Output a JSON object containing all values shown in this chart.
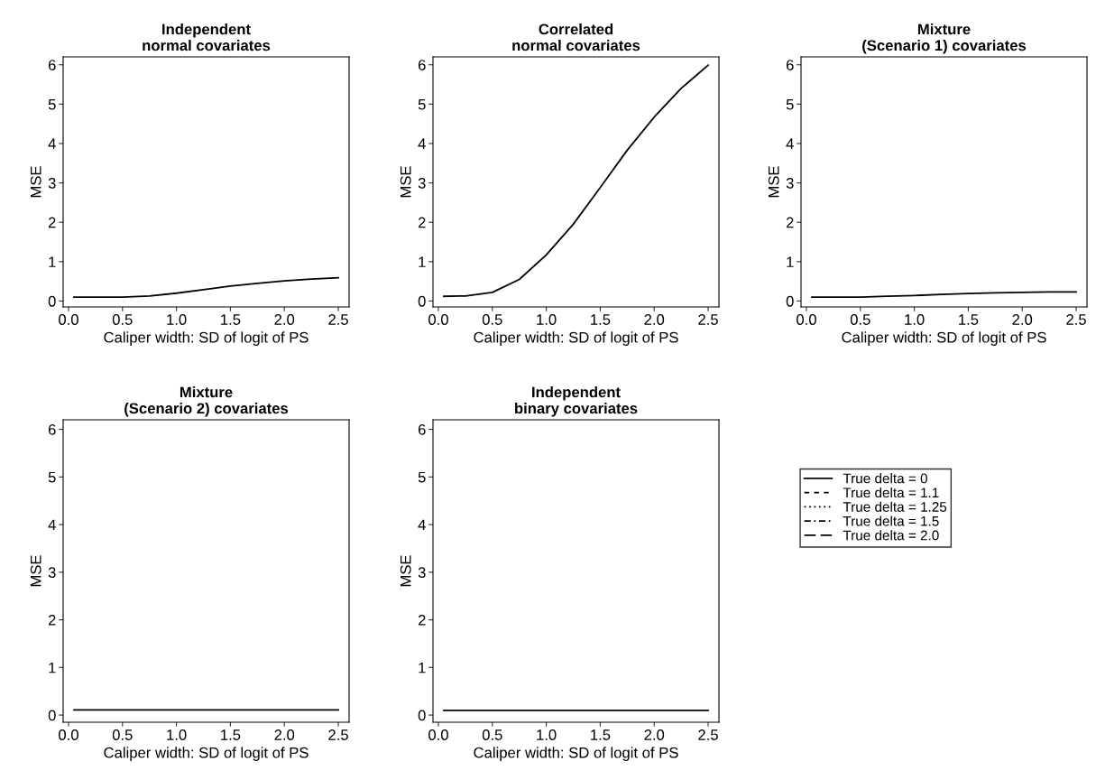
{
  "chart_data": [
    {
      "type": "line",
      "title": "Independent\nnormal covariates",
      "xlabel": "Caliper width: SD of logit of PS",
      "ylabel": "MSE",
      "xlim": [
        -0.05,
        2.6
      ],
      "ylim": [
        -0.15,
        6.2
      ],
      "xticks": [
        {
          "value": 0,
          "label": "0.0"
        },
        0.5,
        {
          "value": 1,
          "label": "1.0"
        },
        1.5,
        {
          "value": 2,
          "label": "2.0"
        },
        2.5
      ],
      "yticks": [
        0,
        1,
        2,
        3,
        4,
        5,
        6
      ],
      "x": [
        0.05,
        0.25,
        0.5,
        0.75,
        1.0,
        1.25,
        1.5,
        1.75,
        2.0,
        2.25,
        2.5
      ],
      "series": [
        {
          "color": "#000000",
          "line_style": "solid",
          "values": [
            0.1,
            0.1,
            0.1,
            0.13,
            0.2,
            0.29,
            0.38,
            0.45,
            0.51,
            0.56,
            0.59
          ]
        }
      ]
    },
    {
      "type": "line",
      "title": "Correlated\nnormal covariates",
      "xlabel": "Caliper width: SD of logit of PS",
      "ylabel": "MSE",
      "xlim": [
        -0.05,
        2.6
      ],
      "ylim": [
        -0.15,
        6.2
      ],
      "xticks": [
        {
          "value": 0,
          "label": "0.0"
        },
        0.5,
        {
          "value": 1,
          "label": "1.0"
        },
        1.5,
        {
          "value": 2,
          "label": "2.0"
        },
        2.5
      ],
      "yticks": [
        0,
        1,
        2,
        3,
        4,
        5,
        6
      ],
      "x": [
        0.05,
        0.25,
        0.5,
        0.75,
        1.0,
        1.25,
        1.5,
        1.75,
        2.0,
        2.25,
        2.5
      ],
      "series": [
        {
          "color": "#000000",
          "line_style": "solid",
          "values": [
            0.12,
            0.13,
            0.22,
            0.55,
            1.17,
            1.95,
            2.88,
            3.83,
            4.67,
            5.4,
            5.99
          ]
        }
      ]
    },
    {
      "type": "line",
      "title": "Mixture\n(Scenario 1) covariates",
      "xlabel": "Caliper width: SD of logit of PS",
      "ylabel": "MSE",
      "xlim": [
        -0.05,
        2.6
      ],
      "ylim": [
        -0.15,
        6.2
      ],
      "xticks": [
        {
          "value": 0,
          "label": "0.0"
        },
        0.5,
        {
          "value": 1,
          "label": "1.0"
        },
        1.5,
        {
          "value": 2,
          "label": "2.0"
        },
        2.5
      ],
      "yticks": [
        0,
        1,
        2,
        3,
        4,
        5,
        6
      ],
      "x": [
        0.05,
        0.25,
        0.5,
        0.75,
        1.0,
        1.25,
        1.5,
        1.75,
        2.0,
        2.25,
        2.5
      ],
      "series": [
        {
          "color": "#000000",
          "line_style": "solid",
          "values": [
            0.1,
            0.1,
            0.1,
            0.12,
            0.14,
            0.17,
            0.19,
            0.21,
            0.22,
            0.23,
            0.23
          ]
        }
      ]
    },
    {
      "type": "line",
      "title": "Mixture\n(Scenario 2) covariates",
      "xlabel": "Caliper width: SD of logit of PS",
      "ylabel": "MSE",
      "xlim": [
        -0.05,
        2.6
      ],
      "ylim": [
        -0.15,
        6.2
      ],
      "xticks": [
        {
          "value": 0,
          "label": "0.0"
        },
        0.5,
        {
          "value": 1,
          "label": "1.0"
        },
        1.5,
        {
          "value": 2,
          "label": "2.0"
        },
        2.5
      ],
      "yticks": [
        0,
        1,
        2,
        3,
        4,
        5,
        6
      ],
      "x": [
        0.05,
        0.25,
        0.5,
        0.75,
        1.0,
        1.25,
        1.5,
        1.75,
        2.0,
        2.25,
        2.5
      ],
      "series": [
        {
          "color": "#000000",
          "line_style": "solid",
          "values": [
            0.11,
            0.11,
            0.11,
            0.11,
            0.11,
            0.11,
            0.11,
            0.11,
            0.11,
            0.11,
            0.11
          ]
        }
      ]
    },
    {
      "type": "line",
      "title": "Independent\nbinary covariates",
      "xlabel": "Caliper width: SD of logit of PS",
      "ylabel": "MSE",
      "xlim": [
        -0.05,
        2.6
      ],
      "ylim": [
        -0.15,
        6.2
      ],
      "xticks": [
        {
          "value": 0,
          "label": "0.0"
        },
        0.5,
        {
          "value": 1,
          "label": "1.0"
        },
        1.5,
        {
          "value": 2,
          "label": "2.0"
        },
        2.5
      ],
      "yticks": [
        0,
        1,
        2,
        3,
        4,
        5,
        6
      ],
      "legend": "right",
      "x": [
        0.05,
        0.25,
        0.5,
        0.75,
        1.0,
        1.25,
        1.5,
        1.75,
        2.0,
        2.25,
        2.5
      ],
      "series": [
        {
          "name": "True delta = 0",
          "color": "#000000",
          "line_style": "solid",
          "values": [
            0.1,
            0.1,
            0.1,
            0.1,
            0.1,
            0.1,
            0.1,
            0.1,
            0.1,
            0.1,
            0.1
          ]
        },
        {
          "name": "True delta = 1.1",
          "color": "#000000",
          "line_style": "dashed",
          "values": [
            null,
            null,
            null,
            null,
            null,
            null,
            null,
            null,
            null,
            null,
            null
          ]
        },
        {
          "name": "True delta = 1.25",
          "color": "#000000",
          "line_style": "dotted",
          "values": [
            null,
            null,
            null,
            null,
            null,
            null,
            null,
            null,
            null,
            null,
            null
          ]
        },
        {
          "name": "True delta = 1.5",
          "color": "#000000",
          "line_style": "dashdot",
          "values": [
            null,
            null,
            null,
            null,
            null,
            null,
            null,
            null,
            null,
            null,
            null
          ]
        },
        {
          "name": "True delta = 2.0",
          "color": "#000000",
          "line_style": "longdash",
          "values": [
            null,
            null,
            null,
            null,
            null,
            null,
            null,
            null,
            null,
            null,
            null
          ]
        }
      ]
    }
  ]
}
